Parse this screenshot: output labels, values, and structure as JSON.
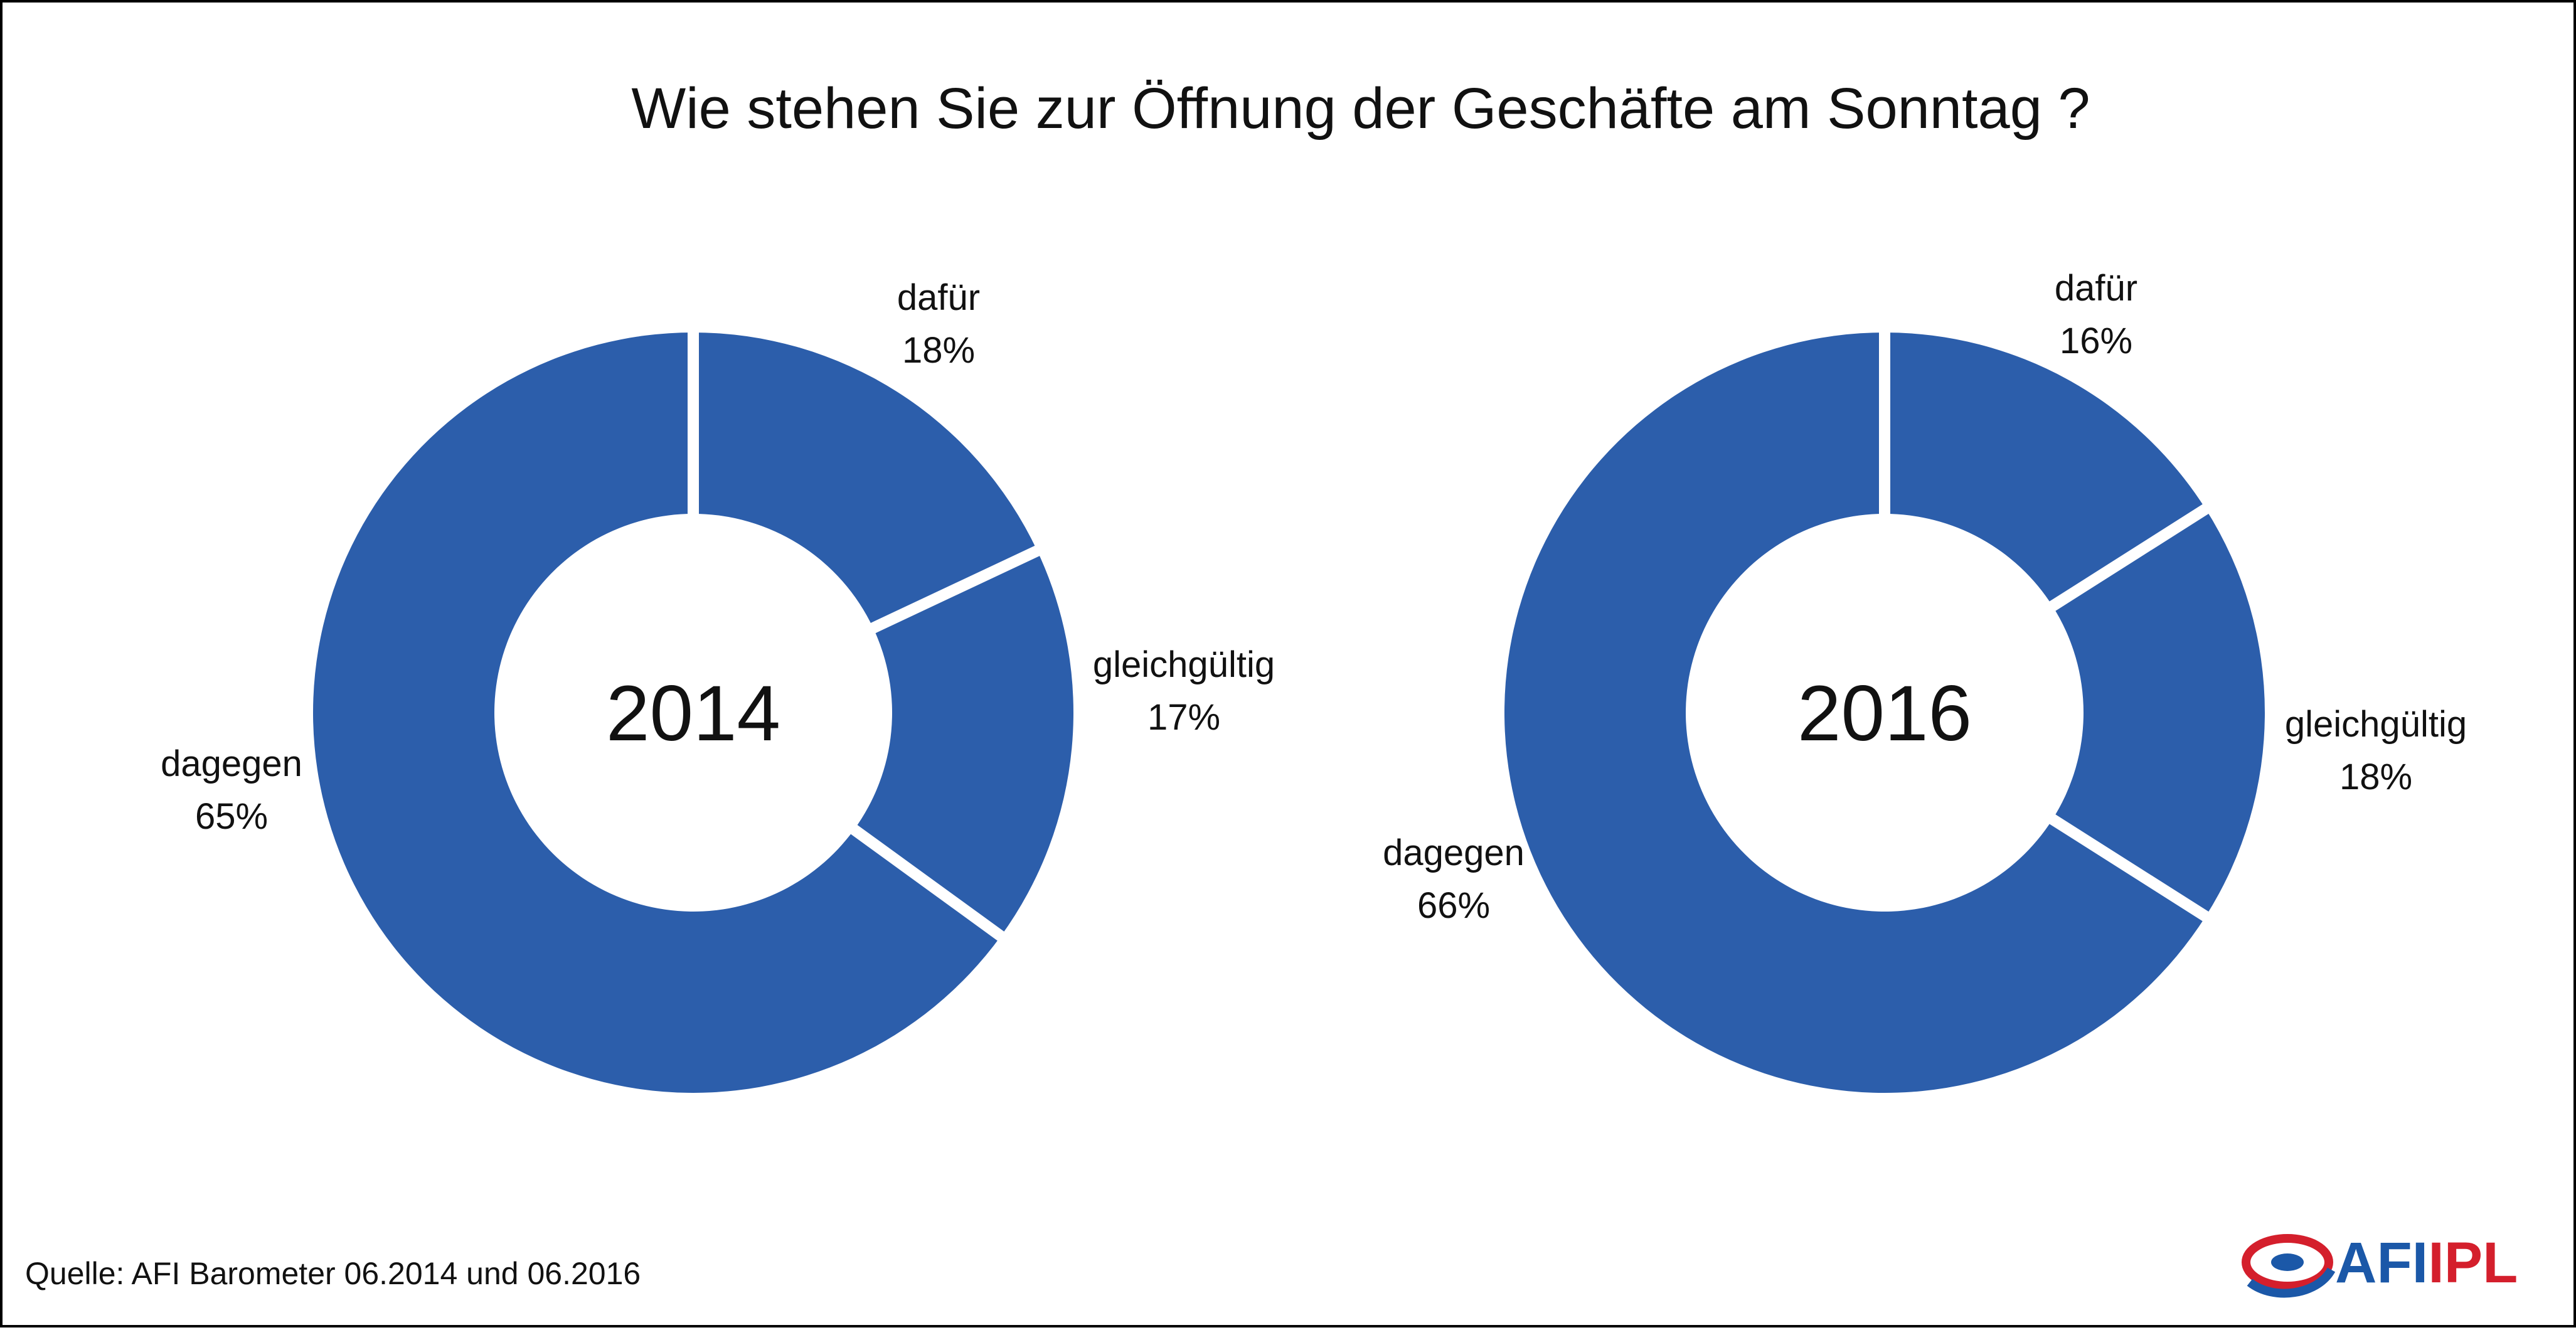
{
  "title": "Wie stehen Sie zur Öffnung der Geschäfte am Sonntag ?",
  "source": "Quelle: AFI Barometer 06.2014 und 06.2016",
  "colors": {
    "slice": "#2c5eab",
    "separator": "#ffffff",
    "logo_red": "#d41f2c",
    "logo_blue": "#1b58a8"
  },
  "logo": {
    "part1": "AFI",
    "part2": "IPL"
  },
  "chart_data": [
    {
      "type": "pie",
      "variant": "donut",
      "center_label": "2014",
      "categories": [
        "dafür",
        "gleichgültig",
        "dagegen"
      ],
      "values": [
        18,
        17,
        65
      ],
      "value_labels": [
        "18%",
        "17%",
        "65%"
      ]
    },
    {
      "type": "pie",
      "variant": "donut",
      "center_label": "2016",
      "categories": [
        "dafür",
        "gleichgültig",
        "dagegen"
      ],
      "values": [
        16,
        18,
        66
      ],
      "value_labels": [
        "16%",
        "18%",
        "66%"
      ]
    }
  ]
}
